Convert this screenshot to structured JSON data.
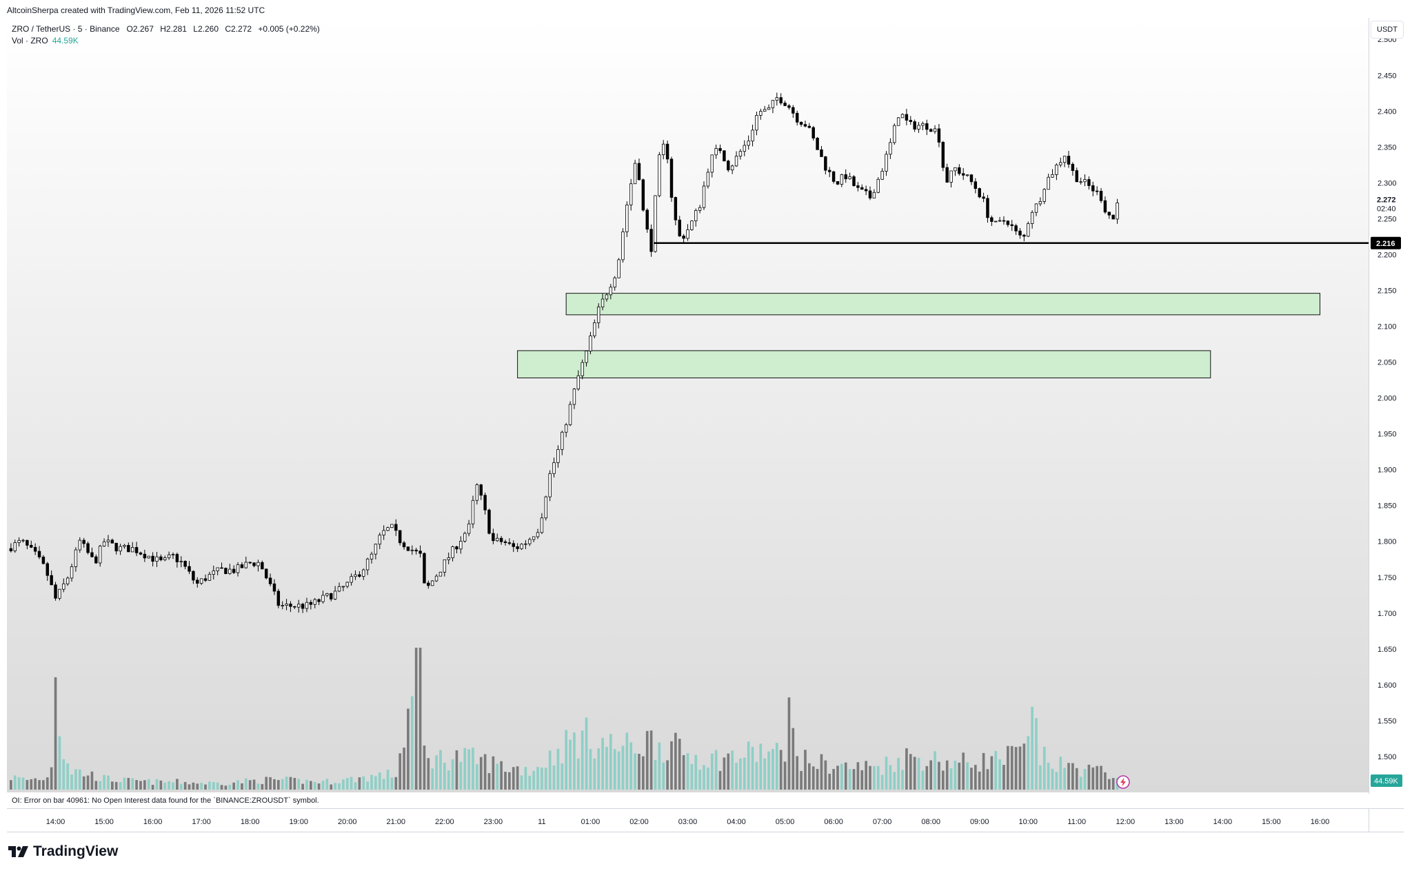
{
  "header": {
    "attribution": "AltcoinSherpa created with TradingView.com, Feb 11, 2026 11:52 UTC"
  },
  "legend": {
    "symbol": "ZRO / TetherUS · 5 · Binance",
    "open_label": "O",
    "open": "2.267",
    "high_label": "H",
    "high": "2.281",
    "low_label": "L",
    "low": "2.260",
    "close_label": "C",
    "close": "2.272",
    "change": "+0.005 (+0.22%)",
    "vol_label": "Vol · ZRO",
    "vol_value": "44.59K"
  },
  "price_axis": {
    "unit": "USDT",
    "current_price": "2.272",
    "countdown": "02:40",
    "line_label": "2.216",
    "volume_label": "44.59K"
  },
  "oi_message": "OI: Error on bar 40961: No Open Interest data found for the `BINANCE:ZROUSDT` symbol.",
  "brand": {
    "name": "TradingView"
  },
  "colors": {
    "candle_up_body": "#ffffff",
    "candle_down_body": "#000000",
    "candle_outline": "#000000",
    "volume_up": "#8ecfc6",
    "volume_down": "#7a7a7a",
    "zone_fill": "#cfeecf",
    "zone_stroke": "#111111",
    "hline": "#000000"
  },
  "chart_data": {
    "type": "candlestick",
    "title": "ZRO / TetherUS · 5 · Binance",
    "ylim": [
      1.45,
      2.53
    ],
    "y_ticks": [
      "2.500",
      "2.450",
      "2.400",
      "2.350",
      "2.300",
      "2.250",
      "2.200",
      "2.150",
      "2.100",
      "2.050",
      "2.000",
      "1.950",
      "1.900",
      "1.850",
      "1.800",
      "1.750",
      "1.700",
      "1.650",
      "1.600",
      "1.550",
      "1.500"
    ],
    "x_ticks": [
      "14:00",
      "15:00",
      "16:00",
      "17:00",
      "18:00",
      "19:00",
      "20:00",
      "21:00",
      "22:00",
      "23:00",
      "11",
      "01:00",
      "02:00",
      "03:00",
      "04:00",
      "05:00",
      "06:00",
      "07:00",
      "08:00",
      "09:00",
      "10:00",
      "11:00",
      "12:00",
      "13:00",
      "14:00",
      "15:00",
      "16:00"
    ],
    "x_tick_hours": [
      14,
      15,
      16,
      17,
      18,
      19,
      20,
      21,
      22,
      23,
      24,
      25,
      26,
      27,
      28,
      29,
      30,
      31,
      32,
      33,
      34,
      35,
      36,
      37,
      38,
      39,
      40
    ],
    "x_range_hours": [
      13.0,
      41.0
    ],
    "bar_minutes": 5,
    "price_path": [
      [
        13.0,
        1.79
      ],
      [
        13.3,
        1.8
      ],
      [
        13.6,
        1.78
      ],
      [
        13.8,
        1.76
      ],
      [
        14.0,
        1.72
      ],
      [
        14.1,
        1.73
      ],
      [
        14.25,
        1.75
      ],
      [
        14.5,
        1.8
      ],
      [
        14.8,
        1.77
      ],
      [
        15.0,
        1.8
      ],
      [
        15.3,
        1.79
      ],
      [
        15.6,
        1.79
      ],
      [
        15.9,
        1.78
      ],
      [
        16.2,
        1.77
      ],
      [
        16.4,
        1.78
      ],
      [
        16.6,
        1.77
      ],
      [
        16.9,
        1.74
      ],
      [
        17.1,
        1.75
      ],
      [
        17.4,
        1.76
      ],
      [
        17.7,
        1.76
      ],
      [
        18.0,
        1.77
      ],
      [
        18.2,
        1.77
      ],
      [
        18.4,
        1.74
      ],
      [
        18.6,
        1.71
      ],
      [
        18.9,
        1.71
      ],
      [
        19.2,
        1.71
      ],
      [
        19.5,
        1.72
      ],
      [
        19.8,
        1.73
      ],
      [
        20.0,
        1.74
      ],
      [
        20.3,
        1.76
      ],
      [
        20.5,
        1.78
      ],
      [
        20.7,
        1.81
      ],
      [
        20.9,
        1.82
      ],
      [
        21.1,
        1.8
      ],
      [
        21.3,
        1.79
      ],
      [
        21.5,
        1.78
      ],
      [
        21.6,
        1.73
      ],
      [
        21.8,
        1.75
      ],
      [
        22.0,
        1.77
      ],
      [
        22.2,
        1.79
      ],
      [
        22.5,
        1.82
      ],
      [
        22.65,
        1.88
      ],
      [
        22.8,
        1.85
      ],
      [
        22.9,
        1.82
      ],
      [
        23.0,
        1.8
      ],
      [
        23.2,
        1.8
      ],
      [
        23.45,
        1.79
      ],
      [
        23.7,
        1.8
      ],
      [
        23.95,
        1.82
      ],
      [
        24.15,
        1.89
      ],
      [
        24.35,
        1.93
      ],
      [
        24.55,
        1.98
      ],
      [
        24.75,
        2.03
      ],
      [
        24.95,
        2.07
      ],
      [
        25.15,
        2.12
      ],
      [
        25.35,
        2.15
      ],
      [
        25.55,
        2.18
      ],
      [
        25.75,
        2.27
      ],
      [
        25.95,
        2.34
      ],
      [
        26.1,
        2.25
      ],
      [
        26.25,
        2.21
      ],
      [
        26.4,
        2.33
      ],
      [
        26.55,
        2.36
      ],
      [
        26.7,
        2.26
      ],
      [
        26.85,
        2.22
      ],
      [
        27.05,
        2.24
      ],
      [
        27.25,
        2.27
      ],
      [
        27.45,
        2.33
      ],
      [
        27.65,
        2.35
      ],
      [
        27.85,
        2.32
      ],
      [
        28.05,
        2.34
      ],
      [
        28.25,
        2.36
      ],
      [
        28.45,
        2.4
      ],
      [
        28.65,
        2.4
      ],
      [
        28.85,
        2.42
      ],
      [
        29.05,
        2.41
      ],
      [
        29.25,
        2.39
      ],
      [
        29.45,
        2.38
      ],
      [
        29.65,
        2.35
      ],
      [
        29.85,
        2.32
      ],
      [
        30.05,
        2.3
      ],
      [
        30.25,
        2.31
      ],
      [
        30.5,
        2.29
      ],
      [
        30.75,
        2.28
      ],
      [
        30.95,
        2.31
      ],
      [
        31.15,
        2.35
      ],
      [
        31.35,
        2.4
      ],
      [
        31.55,
        2.38
      ],
      [
        31.75,
        2.38
      ],
      [
        31.95,
        2.38
      ],
      [
        32.15,
        2.37
      ],
      [
        32.3,
        2.3
      ],
      [
        32.5,
        2.32
      ],
      [
        32.7,
        2.31
      ],
      [
        32.85,
        2.3
      ],
      [
        33.05,
        2.28
      ],
      [
        33.2,
        2.25
      ],
      [
        33.35,
        2.24
      ],
      [
        33.55,
        2.25
      ],
      [
        33.75,
        2.23
      ],
      [
        33.9,
        2.22
      ],
      [
        34.05,
        2.26
      ],
      [
        34.2,
        2.27
      ],
      [
        34.35,
        2.3
      ],
      [
        34.55,
        2.32
      ],
      [
        34.75,
        2.34
      ],
      [
        34.95,
        2.31
      ],
      [
        35.15,
        2.3
      ],
      [
        35.35,
        2.29
      ],
      [
        35.5,
        2.28
      ],
      [
        35.6,
        2.26
      ],
      [
        35.75,
        2.25
      ],
      [
        35.8,
        2.26
      ],
      [
        35.85,
        2.272
      ]
    ],
    "volume_path": [
      [
        13.0,
        12
      ],
      [
        13.4,
        9
      ],
      [
        13.9,
        11
      ],
      [
        14.0,
        95
      ],
      [
        14.1,
        48
      ],
      [
        14.3,
        18
      ],
      [
        14.6,
        15
      ],
      [
        15.0,
        10
      ],
      [
        15.5,
        8
      ],
      [
        16.0,
        7
      ],
      [
        16.5,
        7
      ],
      [
        17.0,
        6
      ],
      [
        17.5,
        6
      ],
      [
        18.0,
        8
      ],
      [
        18.5,
        9
      ],
      [
        19.0,
        8
      ],
      [
        19.5,
        7
      ],
      [
        20.0,
        9
      ],
      [
        20.5,
        12
      ],
      [
        21.0,
        14
      ],
      [
        21.5,
        120
      ],
      [
        21.55,
        35
      ],
      [
        21.8,
        28
      ],
      [
        22.3,
        30
      ],
      [
        22.8,
        26
      ],
      [
        23.3,
        20
      ],
      [
        23.8,
        18
      ],
      [
        24.2,
        30
      ],
      [
        24.6,
        45
      ],
      [
        25.0,
        48
      ],
      [
        25.4,
        40
      ],
      [
        25.8,
        38
      ],
      [
        26.2,
        45
      ],
      [
        26.6,
        40
      ],
      [
        27.0,
        32
      ],
      [
        27.5,
        28
      ],
      [
        28.0,
        30
      ],
      [
        28.5,
        35
      ],
      [
        29.05,
        30
      ],
      [
        29.1,
        78
      ],
      [
        29.2,
        28
      ],
      [
        29.6,
        25
      ],
      [
        30.0,
        22
      ],
      [
        30.5,
        20
      ],
      [
        31.0,
        22
      ],
      [
        31.5,
        30
      ],
      [
        32.0,
        28
      ],
      [
        32.5,
        24
      ],
      [
        33.0,
        26
      ],
      [
        33.5,
        28
      ],
      [
        33.9,
        35
      ],
      [
        34.0,
        38
      ],
      [
        34.1,
        70
      ],
      [
        34.25,
        30
      ],
      [
        34.6,
        22
      ],
      [
        35.0,
        20
      ],
      [
        35.5,
        16
      ],
      [
        35.8,
        14
      ]
    ],
    "vol_max": 120,
    "horizontal_line": {
      "price": 2.216,
      "start_hour": 26.3,
      "label": "2.216"
    },
    "zones": [
      {
        "price_top": 2.146,
        "price_bottom": 2.116,
        "start_hour": 24.5,
        "end_hour": 40.0
      },
      {
        "price_top": 2.066,
        "price_bottom": 2.028,
        "start_hour": 23.5,
        "end_hour": 37.75
      }
    ]
  }
}
